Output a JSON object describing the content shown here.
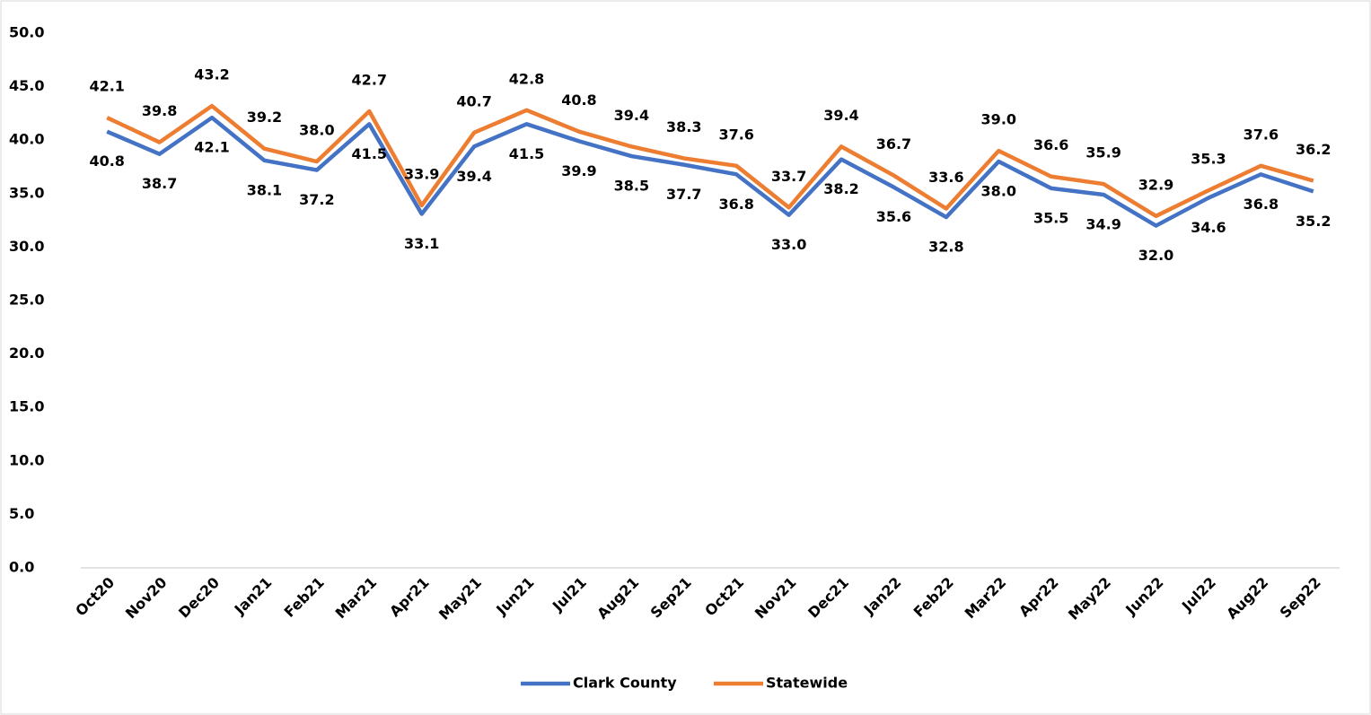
{
  "chart_data": {
    "type": "line",
    "categories": [
      "Oct20",
      "Nov20",
      "Dec20",
      "Jan21",
      "Feb21",
      "Mar21",
      "Apr21",
      "May21",
      "Jun21",
      "Jul21",
      "Aug21",
      "Sep21",
      "Oct21",
      "Nov21",
      "Dec21",
      "Jan22",
      "Feb22",
      "Mar22",
      "Apr22",
      "May22",
      "Jun22",
      "Jul22",
      "Aug22",
      "Sep22"
    ],
    "series": [
      {
        "name": "Clark County",
        "color": "#4472c4",
        "values": [
          40.8,
          38.7,
          42.1,
          38.1,
          37.2,
          41.5,
          33.1,
          39.4,
          41.5,
          39.9,
          38.5,
          37.7,
          36.8,
          33.0,
          38.2,
          35.6,
          32.8,
          38.0,
          35.5,
          34.9,
          32.0,
          34.6,
          36.8,
          35.2
        ],
        "value_labels": [
          "40.8",
          "38.7",
          "42.1",
          "38.1",
          "37.2",
          "41.5",
          "33.1",
          "39.4",
          "41.5",
          "39.9",
          "38.5",
          "37.7",
          "36.8",
          "33.0",
          "38.2",
          "35.6",
          "32.8",
          "38.0",
          "35.5",
          "34.9",
          "32.0",
          "34.6",
          "36.8",
          "35.2"
        ]
      },
      {
        "name": "Statewide",
        "color": "#ed7d31",
        "values": [
          42.1,
          39.8,
          43.2,
          39.2,
          38.0,
          42.7,
          33.9,
          40.7,
          42.8,
          40.8,
          39.4,
          38.3,
          37.6,
          33.7,
          39.4,
          36.7,
          33.6,
          39.0,
          36.6,
          35.9,
          32.9,
          35.3,
          37.6,
          36.2
        ],
        "value_labels": [
          "42.1",
          "39.8",
          "43.2",
          "39.2",
          "38.0",
          "42.7",
          "33.9",
          "40.7",
          "42.8",
          "40.8",
          "39.4",
          "38.3",
          "37.6",
          "33.7",
          "39.4",
          "36.7",
          "33.6",
          "39.0",
          "36.6",
          "35.9",
          "32.9",
          "35.3",
          "37.6",
          "36.2"
        ]
      }
    ],
    "ylim": [
      0,
      50
    ],
    "yticks": [
      {
        "value": 0,
        "label": "0.0"
      },
      {
        "value": 5,
        "label": "5.0"
      },
      {
        "value": 10,
        "label": "10.0"
      },
      {
        "value": 15,
        "label": "15.0"
      },
      {
        "value": 20,
        "label": "20.0"
      },
      {
        "value": 25,
        "label": "25.0"
      },
      {
        "value": 30,
        "label": "30.0"
      },
      {
        "value": 35,
        "label": "35.0"
      },
      {
        "value": 40,
        "label": "40.0"
      },
      {
        "value": 45,
        "label": "45.0"
      },
      {
        "value": 50,
        "label": "50.0"
      }
    ],
    "grid": false,
    "legend": "bottom"
  }
}
